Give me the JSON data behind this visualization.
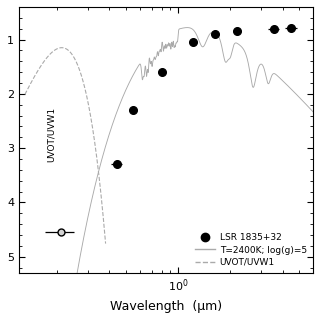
{
  "title": "",
  "xlabel": "Wavelength  (μm)",
  "ylabel": "",
  "background_color": "#ffffff",
  "legend_labels": [
    "LSR 1835+32",
    "T=2400K; log(g)=5",
    "UVOT/UVW1"
  ],
  "uvot_annotation": "UVOT/UVW1",
  "data_points": {
    "x": [
      0.21,
      0.44,
      0.55,
      0.8,
      1.22,
      1.63,
      2.19,
      3.55,
      4.49
    ],
    "y": [
      -4.55,
      -3.3,
      -2.3,
      -1.6,
      -1.05,
      -0.9,
      -0.85,
      -0.8,
      -0.78
    ],
    "xerr": [
      0.04,
      0.03,
      0.03,
      0.04,
      0.06,
      0.08,
      0.12,
      0.25,
      0.35
    ]
  },
  "ylim": [
    -5.3,
    -0.4
  ],
  "xlim": [
    0.12,
    6.0
  ],
  "yticks": [
    -1,
    -2,
    -3,
    -4,
    -5
  ],
  "ytick_labels": [
    "1",
    "2",
    "3",
    "4",
    "5"
  ],
  "model_color": "#aaaaaa",
  "filter_color": "#aaaaaa",
  "point_color_uv": "#aaaaaa",
  "point_color": "#000000"
}
